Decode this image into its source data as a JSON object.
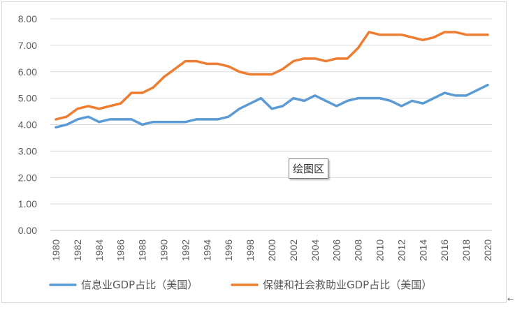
{
  "chart_data": {
    "type": "line",
    "x": [
      1980,
      1981,
      1982,
      1983,
      1984,
      1985,
      1986,
      1987,
      1988,
      1989,
      1990,
      1991,
      1992,
      1993,
      1994,
      1995,
      1996,
      1997,
      1998,
      1999,
      2000,
      2001,
      2002,
      2003,
      2004,
      2005,
      2006,
      2007,
      2008,
      2009,
      2010,
      2011,
      2012,
      2013,
      2014,
      2015,
      2016,
      2017,
      2018,
      2019,
      2020
    ],
    "xticks": [
      "1980",
      "1982",
      "1984",
      "1986",
      "1988",
      "1990",
      "1992",
      "1994",
      "1996",
      "1998",
      "2000",
      "2002",
      "2004",
      "2006",
      "2008",
      "2010",
      "2012",
      "2014",
      "2016",
      "2018",
      "2020"
    ],
    "yticks": [
      "0.00",
      "1.00",
      "2.00",
      "3.00",
      "4.00",
      "5.00",
      "6.00",
      "7.00",
      "8.00"
    ],
    "ylim": [
      0,
      8
    ],
    "grid": true,
    "legend": "bottom",
    "series": [
      {
        "name": "信息业GDP占比（美国）",
        "color": "#5b9bd5",
        "values": [
          3.9,
          4.0,
          4.2,
          4.3,
          4.1,
          4.2,
          4.2,
          4.2,
          4.0,
          4.1,
          4.1,
          4.1,
          4.1,
          4.2,
          4.2,
          4.2,
          4.3,
          4.6,
          4.8,
          5.0,
          4.6,
          4.7,
          5.0,
          4.9,
          5.1,
          4.9,
          4.7,
          4.9,
          5.0,
          5.0,
          5.0,
          4.9,
          4.7,
          4.9,
          4.8,
          5.0,
          5.2,
          5.1,
          5.1,
          5.3,
          5.5
        ]
      },
      {
        "name": "保健和社会救助业GDP占比（美国）",
        "color": "#ed7d31",
        "values": [
          4.2,
          4.3,
          4.6,
          4.7,
          4.6,
          4.7,
          4.8,
          5.2,
          5.2,
          5.4,
          5.8,
          6.1,
          6.4,
          6.4,
          6.3,
          6.3,
          6.2,
          6.0,
          5.9,
          5.9,
          5.9,
          6.1,
          6.4,
          6.5,
          6.5,
          6.4,
          6.5,
          6.5,
          6.9,
          7.5,
          7.4,
          7.4,
          7.4,
          7.3,
          7.2,
          7.3,
          7.5,
          7.5,
          7.4,
          7.4,
          7.4
        ]
      }
    ]
  },
  "tooltip": {
    "text": "绘图区"
  },
  "corner_mark": "←"
}
